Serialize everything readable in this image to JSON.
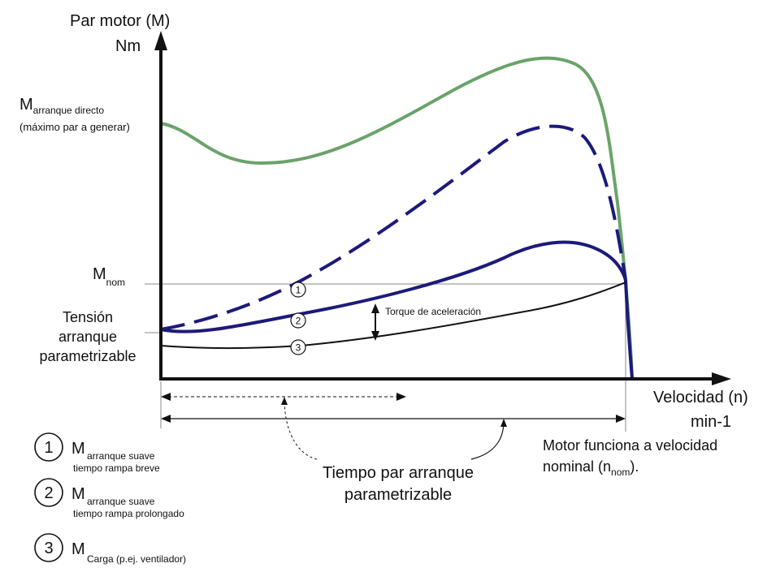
{
  "axes": {
    "y_label_line1": "Par motor (M)",
    "y_label_line2": "Nm",
    "x_label_line1": "Velocidad (n)",
    "x_label_line2": "min-1"
  },
  "labels": {
    "m_main": "M",
    "m_arranque_sub": "arranque directo",
    "m_arranque_note": "(máximo par a generar)",
    "m_nom_sub": "nom",
    "tension_line1": "Tensión",
    "tension_line2": "arranque",
    "tension_line3": "parametrizable",
    "torque_acel": "Torque de aceleración",
    "tiempo_line1": "Tiempo par arranque",
    "tiempo_line2": "parametrizable",
    "motor_line1": "Motor funciona a velocidad",
    "motor_line2_pre": "nominal (n",
    "motor_line2_sub": "nom",
    "motor_line2_post": ")."
  },
  "curve_markers": [
    "1",
    "2",
    "3"
  ],
  "legend": [
    {
      "num": "1",
      "main": "M",
      "sub1": "arranque suave",
      "sub2": "tiempo rampa breve"
    },
    {
      "num": "2",
      "main": "M",
      "sub1": "arranque suave",
      "sub2": "tiempo rampa prolongado"
    },
    {
      "num": "3",
      "main": "M",
      "sub1": "Carga (p.ej. ventilador)",
      "sub2": ""
    }
  ],
  "colors": {
    "direct_start_curve": "#6aa36a",
    "soft_start_curves": "#1c1a7a",
    "load_curve": "#111111",
    "reference_lines": "#888888"
  }
}
